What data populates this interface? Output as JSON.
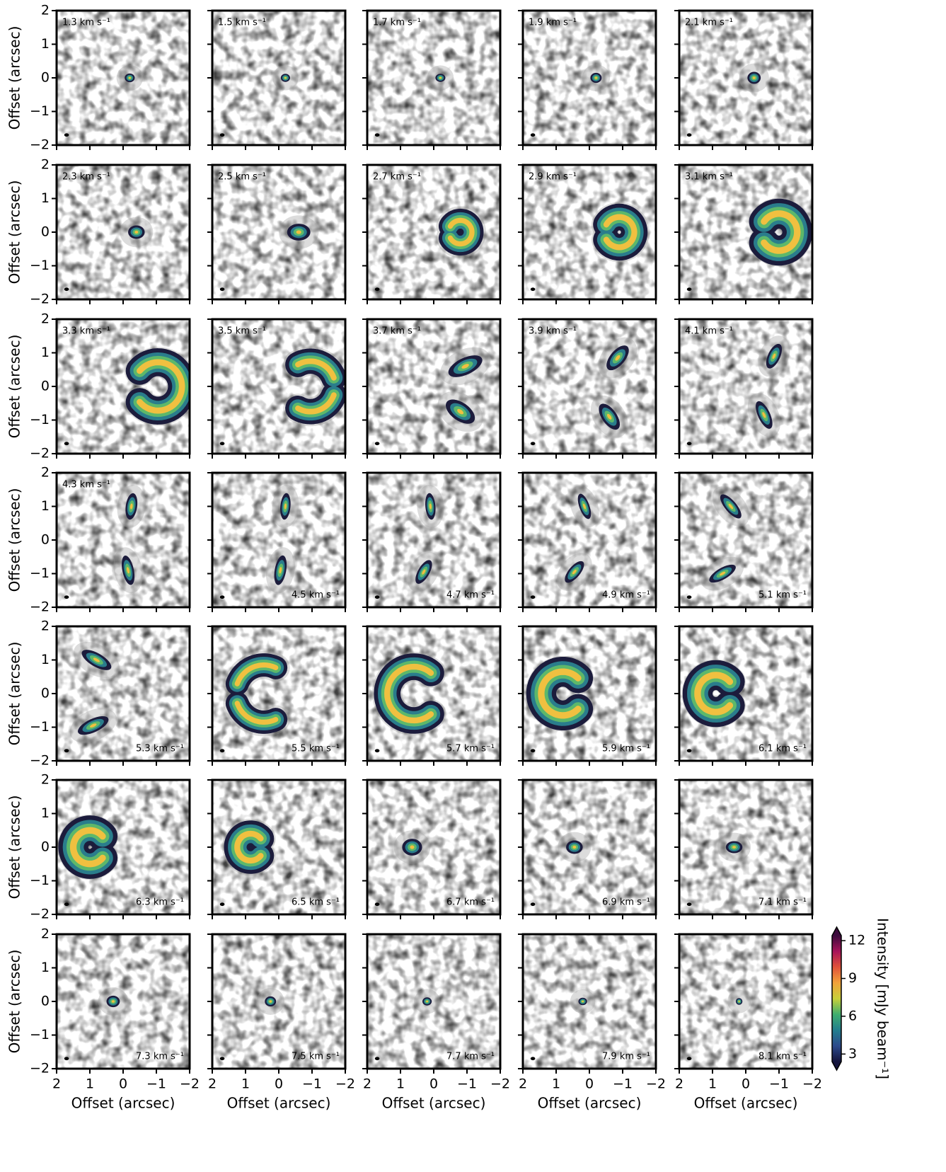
{
  "chart_data": {
    "type": "channel_maps",
    "xlabel": "Offset (arcsec)",
    "ylabel": "Offset (arcsec)",
    "xlim": [
      2,
      -2
    ],
    "ylim": [
      -2,
      2
    ],
    "xticks": [
      2,
      1,
      0,
      {
        "value": -1,
        "label": "−1"
      },
      {
        "value": -2,
        "label": "−2"
      }
    ],
    "yticks": [
      {
        "value": -2,
        "label": "−2"
      },
      {
        "value": -1,
        "label": "−1"
      },
      0,
      1,
      2
    ],
    "panels": [
      {
        "label": "1.3 km s⁻¹",
        "label_corner": "top-left"
      },
      {
        "label": "1.5 km s⁻¹",
        "label_corner": "top-left"
      },
      {
        "label": "1.7 km s⁻¹",
        "label_corner": "top-left"
      },
      {
        "label": "1.9 km s⁻¹",
        "label_corner": "top-left"
      },
      {
        "label": "2.1 km s⁻¹",
        "label_corner": "top-left"
      },
      {
        "label": "2.3 km s⁻¹",
        "label_corner": "top-left"
      },
      {
        "label": "2.5 km s⁻¹",
        "label_corner": "top-left"
      },
      {
        "label": "2.7 km s⁻¹",
        "label_corner": "top-left"
      },
      {
        "label": "2.9 km s⁻¹",
        "label_corner": "top-left"
      },
      {
        "label": "3.1 km s⁻¹",
        "label_corner": "top-left"
      },
      {
        "label": "3.3 km s⁻¹",
        "label_corner": "top-left"
      },
      {
        "label": "3.5 km s⁻¹",
        "label_corner": "top-left"
      },
      {
        "label": "3.7 km s⁻¹",
        "label_corner": "top-left"
      },
      {
        "label": "3.9 km s⁻¹",
        "label_corner": "top-left"
      },
      {
        "label": "4.1 km s⁻¹",
        "label_corner": "top-left"
      },
      {
        "label": "4.3 km s⁻¹",
        "label_corner": "top-left"
      },
      {
        "label": "4.5 km s⁻¹",
        "label_corner": "bottom-right"
      },
      {
        "label": "4.7 km s⁻¹",
        "label_corner": "bottom-right"
      },
      {
        "label": "4.9 km s⁻¹",
        "label_corner": "bottom-right"
      },
      {
        "label": "5.1 km s⁻¹",
        "label_corner": "bottom-right"
      },
      {
        "label": "5.3 km s⁻¹",
        "label_corner": "bottom-right"
      },
      {
        "label": "5.5 km s⁻¹",
        "label_corner": "bottom-right"
      },
      {
        "label": "5.7 km s⁻¹",
        "label_corner": "bottom-right"
      },
      {
        "label": "5.9 km s⁻¹",
        "label_corner": "bottom-right"
      },
      {
        "label": "6.1 km s⁻¹",
        "label_corner": "bottom-right"
      },
      {
        "label": "6.3 km s⁻¹",
        "label_corner": "bottom-right"
      },
      {
        "label": "6.5 km s⁻¹",
        "label_corner": "bottom-right"
      },
      {
        "label": "6.7 km s⁻¹",
        "label_corner": "bottom-right"
      },
      {
        "label": "6.9 km s⁻¹",
        "label_corner": "bottom-right"
      },
      {
        "label": "7.1 km s⁻¹",
        "label_corner": "bottom-right"
      },
      {
        "label": "7.3 km s⁻¹",
        "label_corner": "bottom-right"
      },
      {
        "label": "7.5 km s⁻¹",
        "label_corner": "bottom-right"
      },
      {
        "label": "7.7 km s⁻¹",
        "label_corner": "bottom-right"
      },
      {
        "label": "7.9 km s⁻¹",
        "label_corner": "bottom-right"
      },
      {
        "label": "8.1 km s⁻¹",
        "label_corner": "bottom-right"
      }
    ],
    "colorbar": {
      "label": "Intensity [mJy beam⁻¹]",
      "lim": [
        2.4,
        12.4
      ],
      "ticks": [
        3,
        6,
        9,
        12
      ],
      "colors": [
        "#14143c",
        "#2c4a8c",
        "#227e8e",
        "#3fae6e",
        "#c8d03a",
        "#f2a23a",
        "#e0523a",
        "#a8145a",
        "#3c0a3c"
      ]
    }
  }
}
